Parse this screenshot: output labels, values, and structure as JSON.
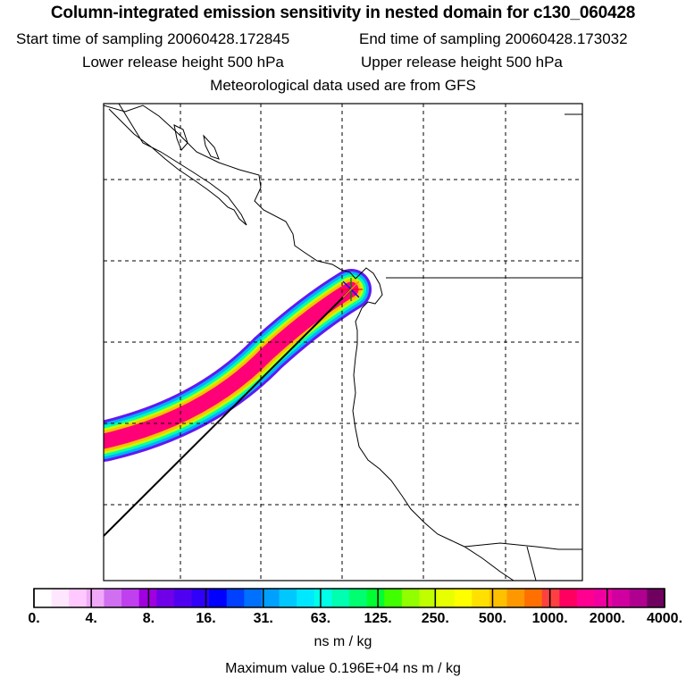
{
  "header": {
    "title": "Column-integrated emission sensitivity in nested domain for c130_060428",
    "start_time": "Start time of sampling 20060428.172845",
    "end_time": "End time of sampling 20060428.173032",
    "lower_height": "Lower release height  500 hPa",
    "upper_height": "Upper release height  500 hPa",
    "met_data": "Meteorological data used are from GFS"
  },
  "colorbar": {
    "colors": [
      "#ffffff",
      "#ffe6ff",
      "#ffc8ff",
      "#f0a8f8",
      "#d070f0",
      "#c040f0",
      "#a000e0",
      "#7000e8",
      "#5000f0",
      "#3000f8",
      "#0000ff",
      "#0040ff",
      "#0070ff",
      "#00a0ff",
      "#00c8ff",
      "#00e8ff",
      "#00ffe8",
      "#00ffb0",
      "#00ff70",
      "#00ff30",
      "#40ff00",
      "#90ff00",
      "#c0ff00",
      "#e8ff00",
      "#ffff00",
      "#ffe000",
      "#ffc000",
      "#ff9800",
      "#ff7000",
      "#ff4040",
      "#ff0060",
      "#ff0090",
      "#f000a0",
      "#d000a0",
      "#b00090",
      "#700060"
    ],
    "tick_labels": [
      "0.",
      "4.",
      "8.",
      "16.",
      "31.",
      "63.",
      "125.",
      "250.",
      "500.",
      "1000.",
      "2000.",
      "4000."
    ],
    "units": "ns m / kg"
  },
  "footer": {
    "max_value": "Maximum value  0.196E+04 ns m / kg"
  }
}
